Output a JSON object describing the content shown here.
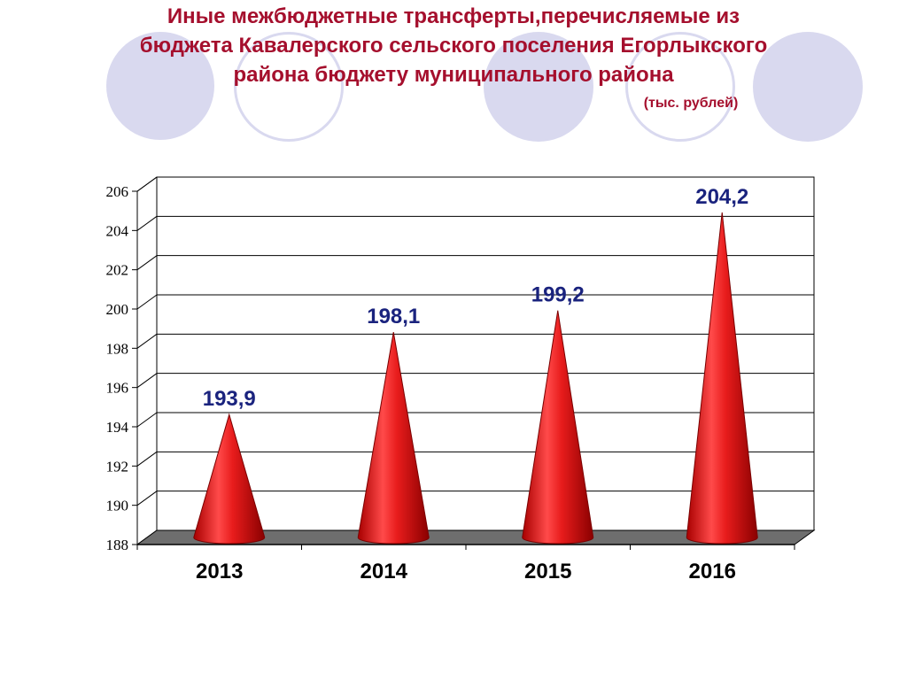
{
  "slide": {
    "title_lines": [
      "Иные межбюджетные трансферты,перечисляемые из",
      "бюджета Кавалерского сельского поселения Егорлыкского",
      "района бюджету муниципального района"
    ],
    "unit_note": "(тыс. рублей)"
  },
  "colors": {
    "title": "#a50f2d",
    "decor_circle": "#d9d9ef",
    "cone": "#e02020",
    "value_label": "#1a237e",
    "floor": "#6e6e6e"
  },
  "chart_data": {
    "type": "bar",
    "bar_shape": "cone",
    "categories": [
      "2013",
      "2014",
      "2015",
      "2016"
    ],
    "values": [
      193.9,
      198.1,
      199.2,
      204.2
    ],
    "value_labels": [
      "193,9",
      "198,1",
      "199,2",
      "204,2"
    ],
    "ylim": [
      188,
      206
    ],
    "y_ticks": [
      "188",
      "190",
      "192",
      "194",
      "196",
      "198",
      "200",
      "202",
      "204",
      "206"
    ],
    "grid": true,
    "legend": "none",
    "title": "",
    "xlabel": "",
    "ylabel": ""
  }
}
